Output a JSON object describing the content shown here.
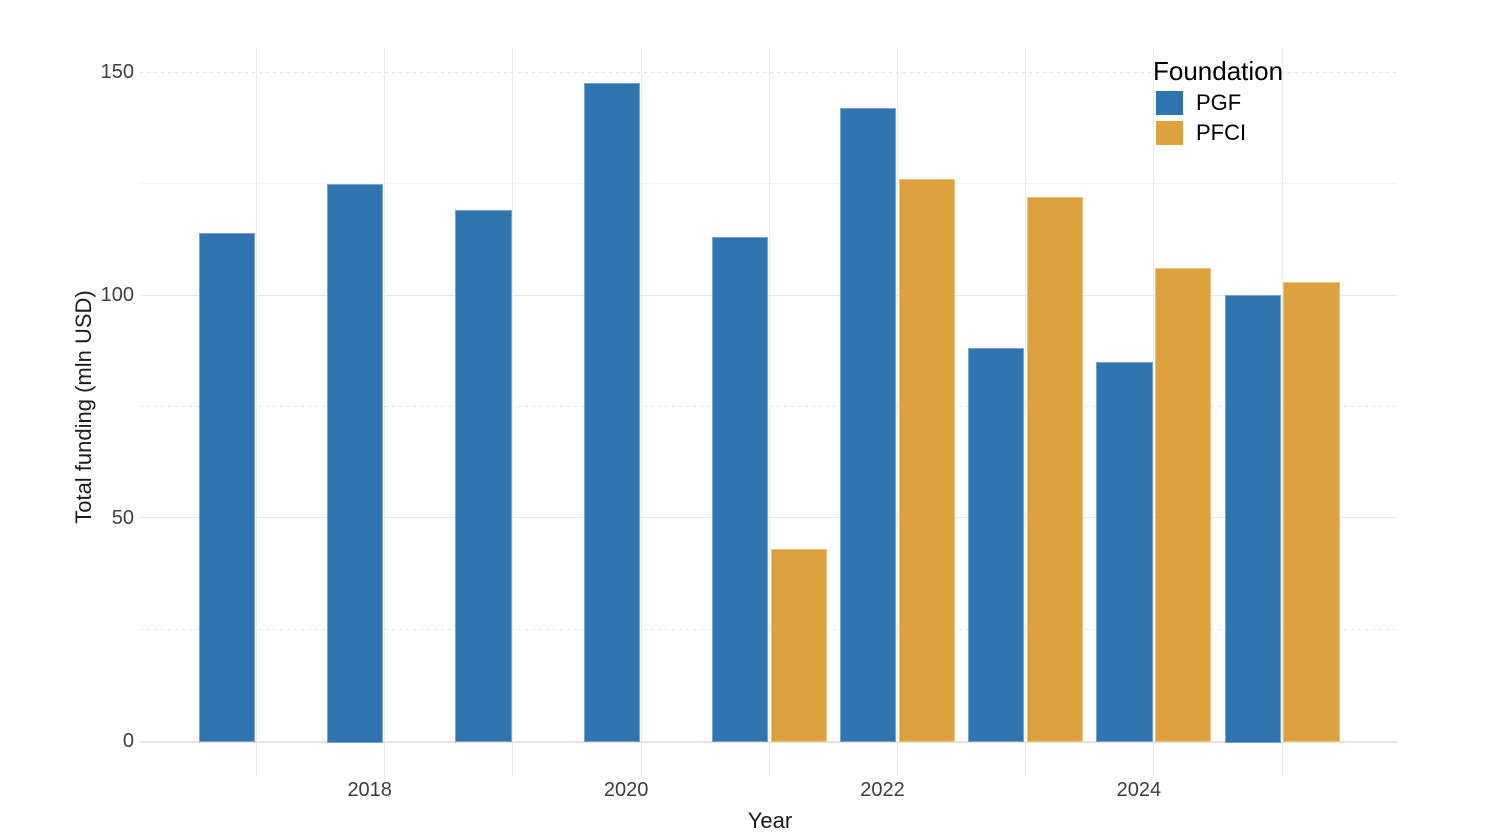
{
  "chart_data": {
    "type": "bar",
    "title": "",
    "xlabel": "Year",
    "ylabel": "Total funding (mln USD)",
    "categories": [
      2017,
      2018,
      2019,
      2020,
      2021,
      2022,
      2023,
      2024,
      2025
    ],
    "series": [
      {
        "name": "PGF",
        "color": "#2F73AF",
        "values": [
          114,
          125,
          119,
          147.5,
          113,
          142,
          88,
          85,
          100
        ]
      },
      {
        "name": "PFCI",
        "color": "#DDA23D",
        "values": [
          null,
          null,
          null,
          null,
          43,
          126,
          122,
          106,
          103
        ]
      }
    ],
    "ylim": [
      0,
      155
    ],
    "y_ticks": [
      0,
      50,
      100,
      150
    ],
    "y_tick_labels": [
      "0",
      "50",
      "100",
      "150"
    ],
    "y_minor_ticks": [
      25,
      75,
      125
    ],
    "x_tick_years": [
      2018,
      2020,
      2022,
      2024
    ],
    "x_tick_labels": [
      "2018",
      "2020",
      "2022",
      "2024"
    ],
    "grid": "on",
    "background": "#FFFFFF",
    "legend": {
      "title": "Foundation",
      "position": "top-right-inside",
      "entries": [
        {
          "label": "PGF",
          "color": "#2F73AF"
        },
        {
          "label": "PFCI",
          "color": "#DDA23D"
        }
      ]
    }
  }
}
